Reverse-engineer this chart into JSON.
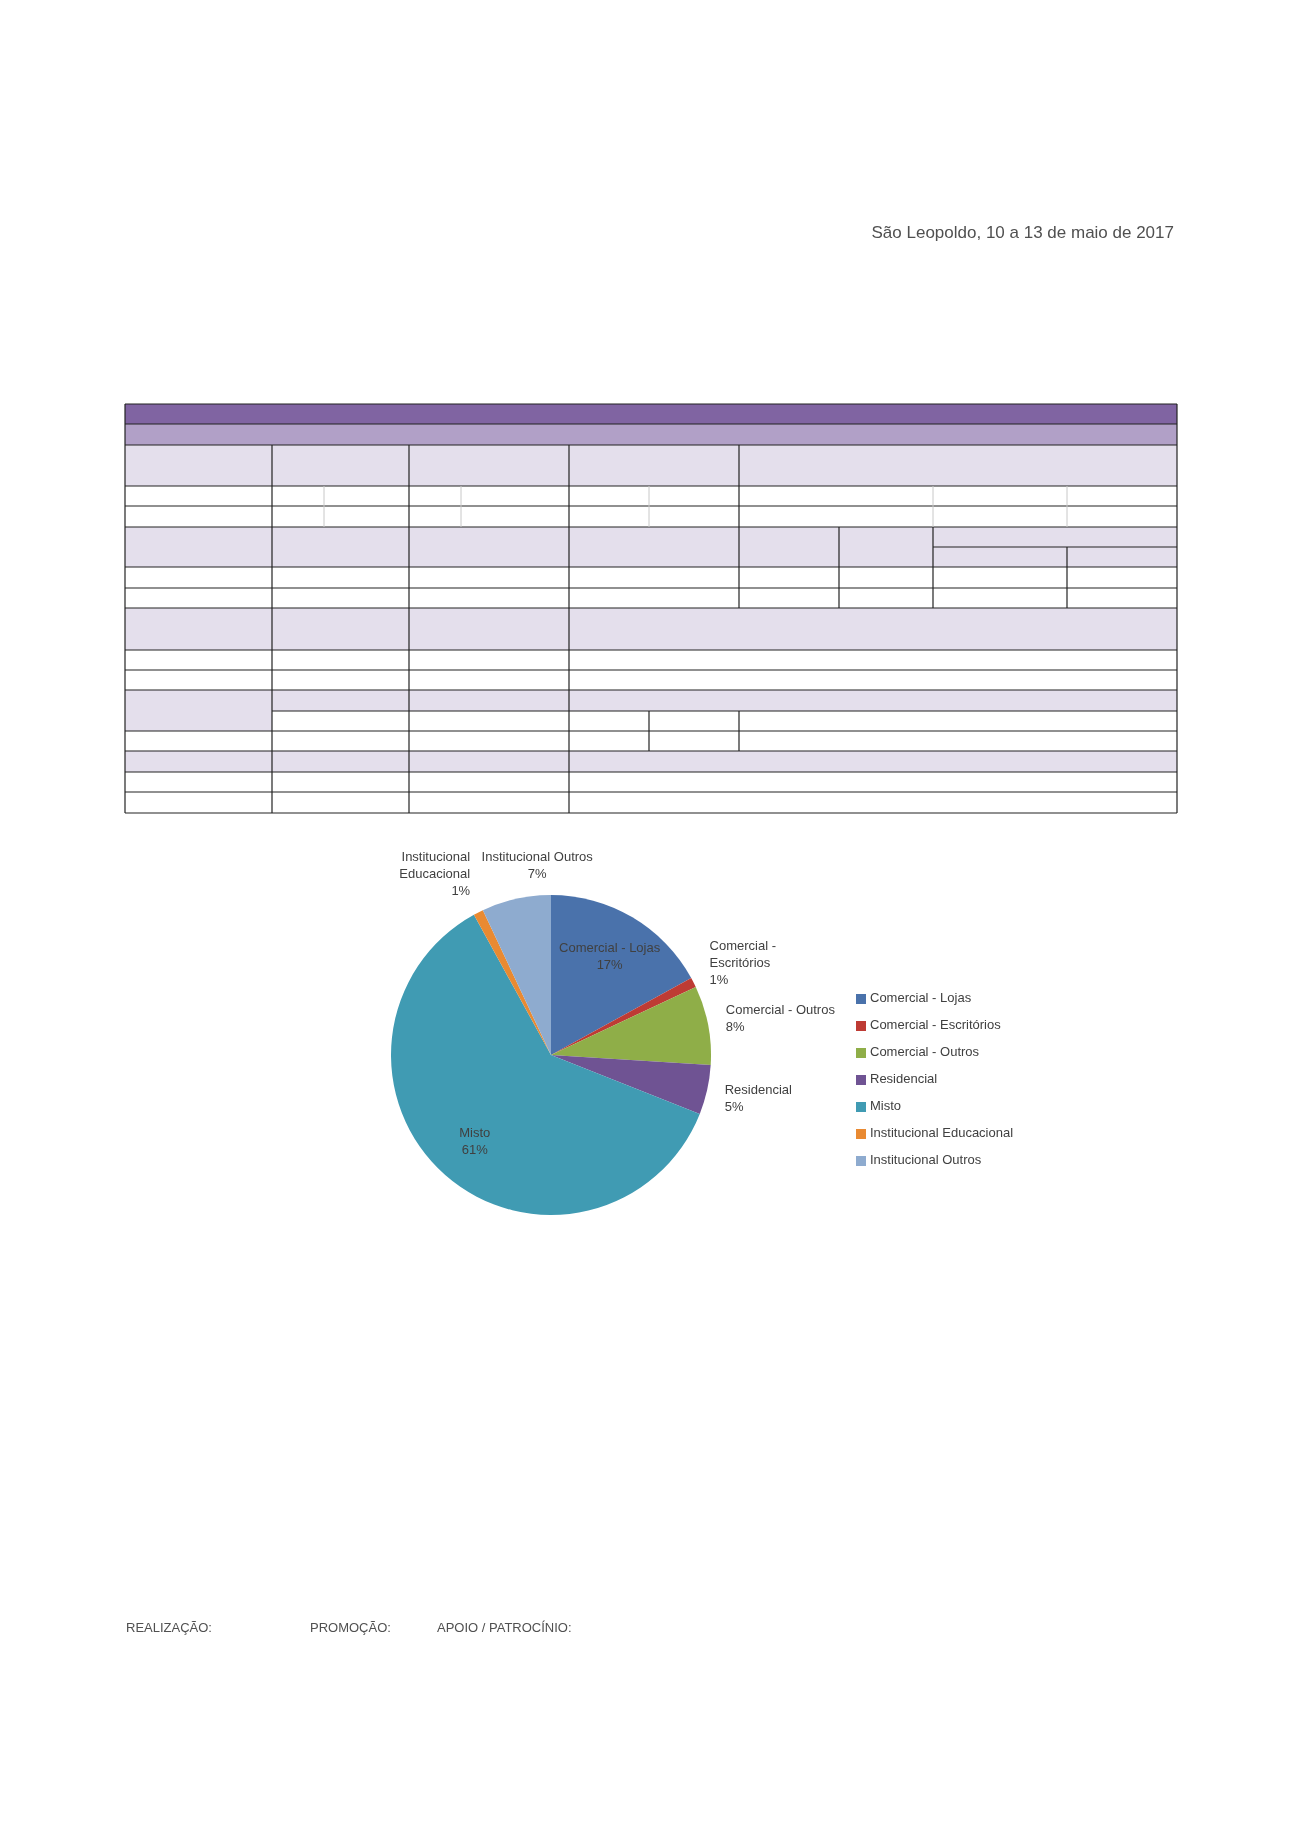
{
  "chart_data": {
    "type": "pie",
    "categories": [
      "Comercial - Lojas",
      "Comercial - Escritórios",
      "Comercial - Outros",
      "Residencial",
      "Misto",
      "Institucional Educacional",
      "Institucional Outros"
    ],
    "values": [
      17,
      1,
      8,
      5,
      61,
      1,
      7
    ],
    "value_labels": [
      "17%",
      "1%",
      "8%",
      "5%",
      "61%",
      "1%",
      "7%"
    ],
    "colors": [
      "#4a72ab",
      "#be3b34",
      "#8fae48",
      "#6f5393",
      "#409bb3",
      "#e98a32",
      "#8eabcf"
    ],
    "legend": "right",
    "annotations": [
      "São Leopoldo, 10 a 13 de maio de 2017",
      "REALIZAÇÃO:",
      "PROMOÇÃO:",
      "APOIO / PATROCÍNIO:"
    ]
  }
}
